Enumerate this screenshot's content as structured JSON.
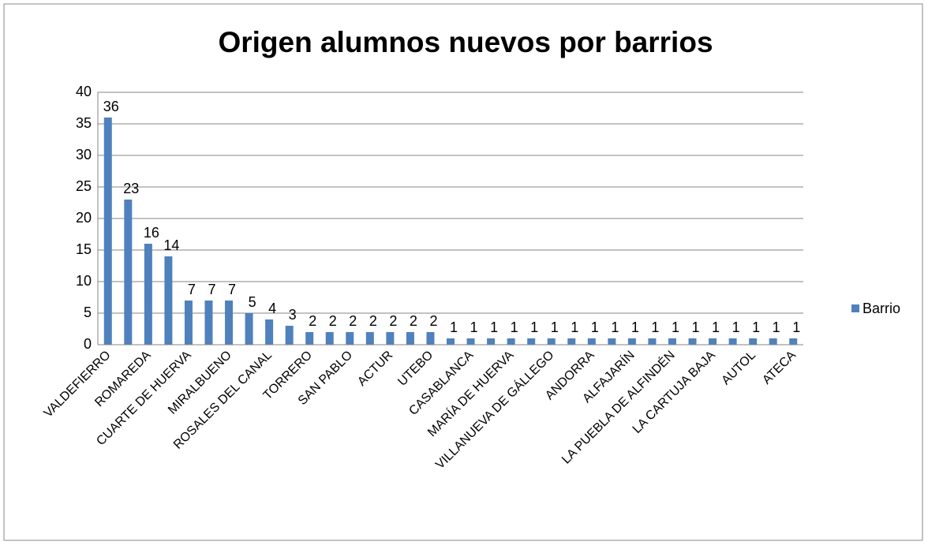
{
  "chart_data": {
    "type": "bar",
    "title": "Origen  alumnos nuevos por barrios",
    "categories": [
      "VALDEFIERRO",
      null,
      "ROMAREDA",
      null,
      "CUARTE DE HUERVA",
      null,
      "MIRALBUENO",
      null,
      "ROSALES DEL CANAL",
      null,
      "TORRERO",
      null,
      "SAN PABLO",
      null,
      "ACTUR",
      null,
      "UTEBO",
      null,
      "CASABLANCA",
      null,
      "MARÍA DE HUERVA",
      null,
      "VILLANUEVA DE GÁLLEGO",
      null,
      "ANDORRA",
      null,
      "ALFAJARÍN",
      null,
      "LA PUEBLA DE ALFINDÉN",
      null,
      "LA CARTUJA BAJA",
      null,
      "AUTOL",
      null,
      "ATECA"
    ],
    "series": [
      {
        "name": "Barrio",
        "color": "#4f81bd",
        "values": [
          36,
          23,
          16,
          14,
          7,
          7,
          7,
          5,
          4,
          3,
          2,
          2,
          2,
          2,
          2,
          2,
          2,
          1,
          1,
          1,
          1,
          1,
          1,
          1,
          1,
          1,
          1,
          1,
          1,
          1,
          1,
          1,
          1,
          1,
          1
        ]
      }
    ],
    "ylim": [
      0,
      40
    ],
    "yticks": [
      0,
      5,
      10,
      15,
      20,
      25,
      30,
      35,
      40
    ],
    "grid": true,
    "legend": "right"
  }
}
